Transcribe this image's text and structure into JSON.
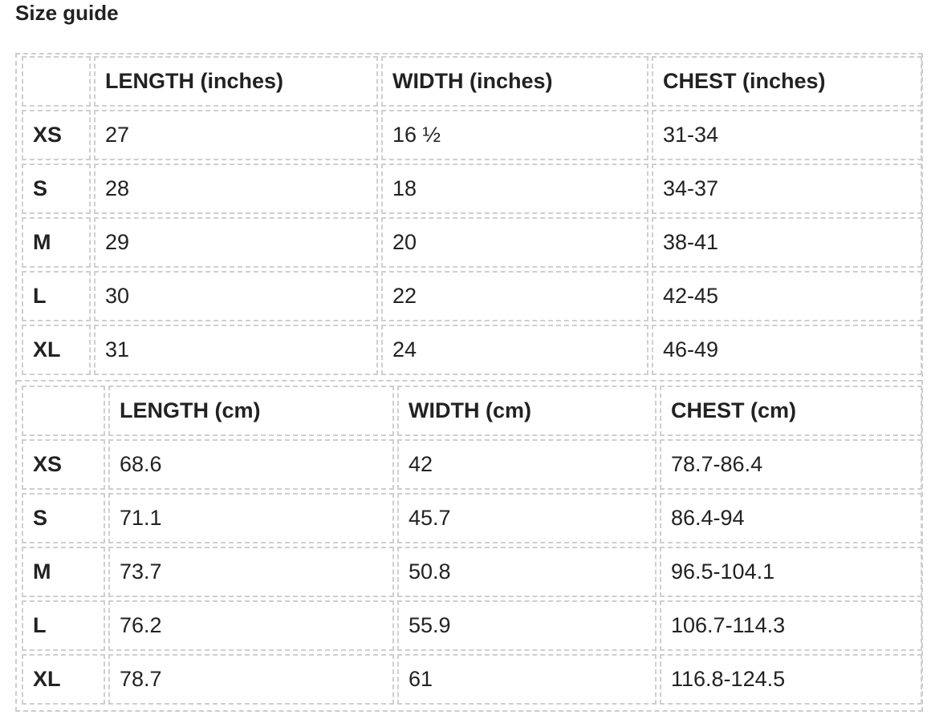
{
  "title": "Size guide",
  "inches_table": {
    "headers": [
      "",
      "LENGTH (inches)",
      "WIDTH (inches)",
      "CHEST (inches)"
    ],
    "rows": [
      [
        "XS",
        "27",
        "16 ½",
        "31-34"
      ],
      [
        "S",
        "28",
        "18",
        "34-37"
      ],
      [
        "M",
        "29",
        "20",
        "38-41"
      ],
      [
        "L",
        "30",
        "22",
        "42-45"
      ],
      [
        "XL",
        "31",
        "24",
        "46-49"
      ]
    ]
  },
  "cm_table": {
    "headers": [
      "",
      "LENGTH (cm)",
      "WIDTH (cm)",
      "CHEST (cm)"
    ],
    "rows": [
      [
        "XS",
        "68.6",
        "42",
        "78.7-86.4"
      ],
      [
        "S",
        "71.1",
        "45.7",
        "86.4-94"
      ],
      [
        "M",
        "73.7",
        "50.8",
        "96.5-104.1"
      ],
      [
        "L",
        "76.2",
        "55.9",
        "106.7-114.3"
      ],
      [
        "XL",
        "78.7",
        "61",
        "116.8-124.5"
      ]
    ]
  }
}
